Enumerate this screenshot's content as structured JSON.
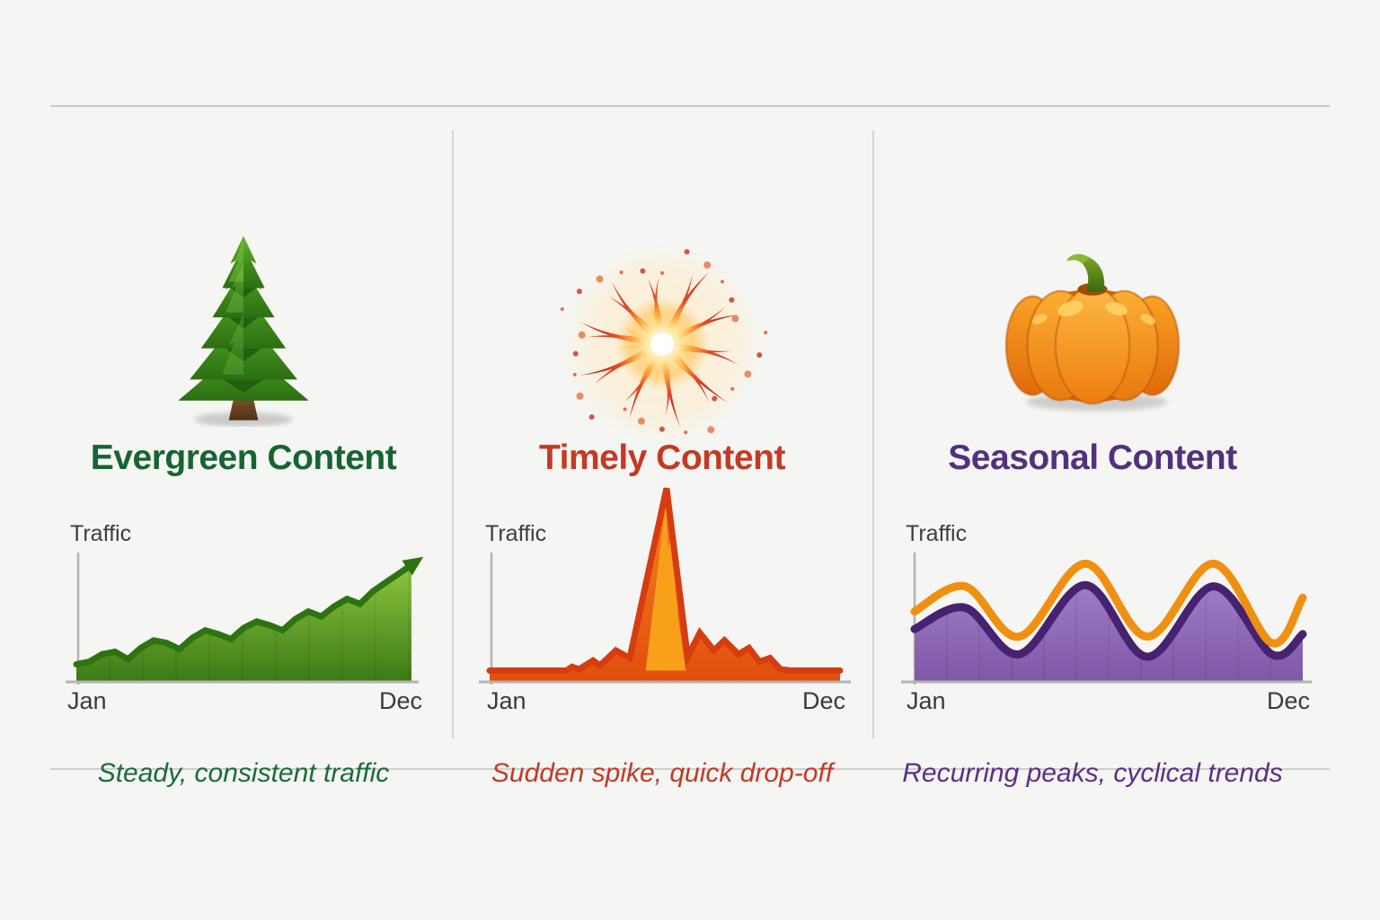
{
  "canvas": {
    "background": "#f5f5f3",
    "rule_color": "#c8c8c8",
    "divider_color": "#d4d4d4"
  },
  "axis_color": "#b4b4b4",
  "panels": [
    {
      "icon": "pine-tree-icon",
      "title": "Evergreen Content",
      "title_color": "#166430",
      "caption": "Steady, consistent traffic",
      "caption_color": "#1b6b3a"
    },
    {
      "icon": "fireworks-icon",
      "title": "Timely Content",
      "title_color": "#c33a23",
      "caption": "Sudden spike, quick drop-off",
      "caption_color": "#c23b26"
    },
    {
      "icon": "pumpkin-icon",
      "title": "Seasonal Content",
      "title_color": "#53307e",
      "caption": "Recurring peaks, cyclical trends",
      "caption_color": "#5e2f86"
    }
  ],
  "chart_data": [
    {
      "type": "area",
      "name": "evergreen-traffic",
      "title": "Evergreen Content traffic over a year",
      "ylabel": "Traffic",
      "x_start": "Jan",
      "x_end": "Dec",
      "ylim": [
        0,
        100
      ],
      "line_color": "#2e7312",
      "fill_top": "#8dc63f",
      "fill_bottom": "#3c7a16",
      "values": [
        14,
        16,
        22,
        24,
        18,
        27,
        33,
        31,
        26,
        35,
        41,
        38,
        34,
        43,
        48,
        45,
        41,
        50,
        56,
        52,
        60,
        66,
        62,
        72,
        79,
        86,
        93
      ],
      "arrow": true,
      "annotation": "steadily rising zigzag line ending in an upward arrow"
    },
    {
      "type": "area",
      "name": "timely-traffic",
      "title": "Timely Content traffic over a year",
      "ylabel": "Traffic",
      "x_start": "Jan",
      "x_end": "Dec",
      "ylim": [
        0,
        100
      ],
      "line_color": "#d63c10",
      "fill_top": "#f58220",
      "fill_bottom": "#e14f0e",
      "inner_color": "#f9a01b",
      "points": [
        [
          0,
          9
        ],
        [
          0.22,
          9
        ],
        [
          0.235,
          12
        ],
        [
          0.255,
          10
        ],
        [
          0.295,
          17
        ],
        [
          0.315,
          13
        ],
        [
          0.36,
          25
        ],
        [
          0.4,
          19
        ],
        [
          0.505,
          154
        ],
        [
          0.565,
          20
        ],
        [
          0.6,
          39
        ],
        [
          0.64,
          25
        ],
        [
          0.67,
          33
        ],
        [
          0.71,
          22
        ],
        [
          0.74,
          27
        ],
        [
          0.77,
          16
        ],
        [
          0.8,
          19
        ],
        [
          0.83,
          10
        ],
        [
          0.86,
          9
        ],
        [
          1,
          9
        ]
      ],
      "inner_points": [
        [
          0.445,
          9
        ],
        [
          0.503,
          143
        ],
        [
          0.509,
          105
        ],
        [
          0.516,
          116
        ],
        [
          0.54,
          48
        ],
        [
          0.56,
          9
        ]
      ],
      "annotation": "flat baseline, one huge mid-year spike overshooting the axis, quick decay back to flat"
    },
    {
      "type": "line-area",
      "name": "seasonal-traffic",
      "title": "Seasonal Content traffic over a year",
      "ylabel": "Traffic",
      "x_start": "Jan",
      "x_end": "Dec",
      "ylim": [
        0,
        100
      ],
      "series": [
        {
          "name": "seasonal-wave-purple",
          "smooth": true,
          "area": true,
          "line_color": "#472271",
          "fill_top": "#a07cc5",
          "fill_bottom": "#7e57a6",
          "points": [
            [
              0,
              42
            ],
            [
              0.13,
              59
            ],
            [
              0.27,
              22
            ],
            [
              0.44,
              77
            ],
            [
              0.6,
              20
            ],
            [
              0.77,
              76
            ],
            [
              0.92,
              22
            ],
            [
              1,
              38
            ]
          ]
        },
        {
          "name": "seasonal-wave-orange",
          "smooth": true,
          "area": false,
          "line_color": "#ef9010",
          "points": [
            [
              0,
              56
            ],
            [
              0.13,
              76
            ],
            [
              0.27,
              36
            ],
            [
              0.44,
              94
            ],
            [
              0.6,
              36
            ],
            [
              0.77,
              94
            ],
            [
              0.92,
              31
            ],
            [
              1,
              67
            ]
          ]
        }
      ],
      "annotation": "three recurring sinusoidal peaks, orange wave riding above filled purple wave, both hooking upward at Dec"
    }
  ]
}
